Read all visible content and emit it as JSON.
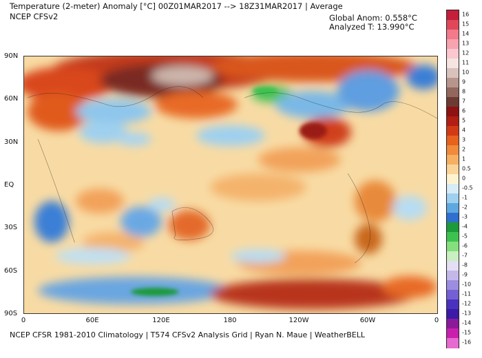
{
  "header": {
    "title": "Temperature (2-meter) Anomaly  [°C] 00Z01MAR2017 --> 18Z31MAR2017 | Average",
    "model": "NCEP CFSv2",
    "global_anom": "Global Anom: 0.558°C",
    "analyzed_t": "Analyzed T: 13.990°C"
  },
  "map": {
    "lat_labels": [
      "90N",
      "60N",
      "30N",
      "EQ",
      "30S",
      "60S",
      "90S"
    ],
    "lon_labels": [
      "0",
      "60E",
      "120E",
      "180",
      "120W",
      "60W",
      "0"
    ]
  },
  "colorbar": {
    "labels": [
      "16",
      "15",
      "14",
      "13",
      "12",
      "11",
      "10",
      "9",
      "8",
      "7",
      "6",
      "5",
      "4",
      "3",
      "2",
      "1",
      "0.5",
      "0",
      "-0.5",
      "-1",
      "-2",
      "-3",
      "-4",
      "-5",
      "-6",
      "-7",
      "-8",
      "-9",
      "-10",
      "-11",
      "-12",
      "-13",
      "-14",
      "-15",
      "-16"
    ],
    "colors": [
      "#c41e3a",
      "#e0485a",
      "#f27a8a",
      "#f7a3b0",
      "#fbc8cf",
      "#f6e4e0",
      "#d9c2bc",
      "#b8958c",
      "#93675d",
      "#6c3b33",
      "#8e1212",
      "#b01e14",
      "#d23a16",
      "#e6621d",
      "#f08b3c",
      "#f6b061",
      "#fbd49a",
      "#fff3cf",
      "#d6ecf7",
      "#9ed0f0",
      "#5ea8e2",
      "#2f6fcf",
      "#1d9a3a",
      "#3ec24f",
      "#86df7d",
      "#c8f0c0",
      "#e4dff4",
      "#c4b8ea",
      "#9d8de0",
      "#7460d2",
      "#4a32bf",
      "#3a1aa6",
      "#8a1a9a",
      "#c91fae",
      "#e66ad0"
    ]
  },
  "footer": {
    "text": "NCEP CFSR 1981-2010 Climatology | T574 CFSv2 Analysis Grid | Ryan N. Maue | WeatherBELL"
  }
}
